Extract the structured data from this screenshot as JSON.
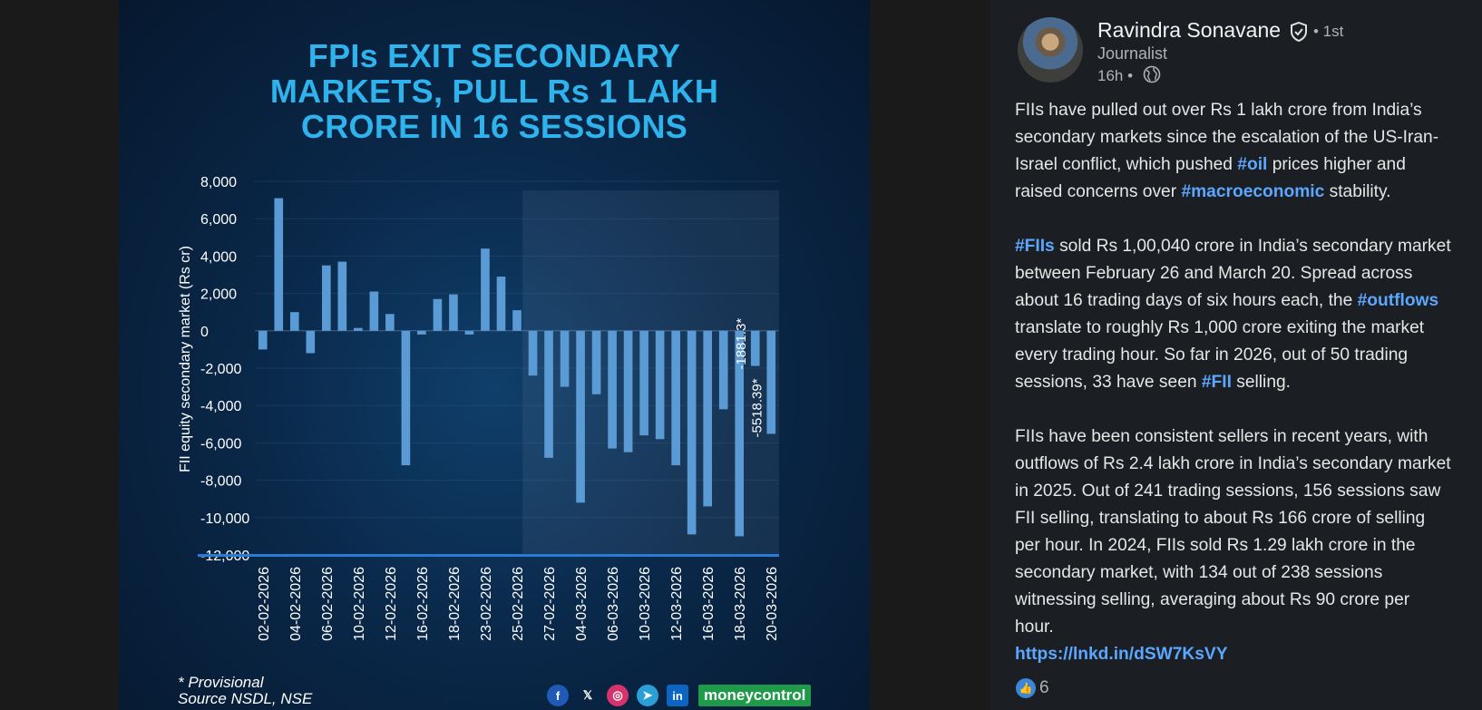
{
  "infographic": {
    "title_lines": [
      "FPIs EXIT SECONDARY",
      "MARKETS, PULL Rs 1 LAKH",
      "CRORE IN 16 SESSIONS"
    ],
    "footnote_line1": "* Provisional",
    "footnote_line2": "Source NSDL, NSE",
    "brand": "moneycontrol",
    "colors": {
      "title": "#2fb3ec",
      "bar": "#5b9bd5",
      "axis": "#2a7bd4",
      "background": "#0a2849"
    },
    "social_icons": [
      "facebook-icon",
      "x-icon",
      "instagram-icon",
      "telegram-icon",
      "linkedin-icon"
    ]
  },
  "chart_data": {
    "type": "bar",
    "ylabel": "FII equity secondary market (Rs cr)",
    "ylim": [
      -12000,
      8000
    ],
    "yticks": [
      "8,000",
      "6,000",
      "4,000",
      "2,000",
      "0",
      "-2,000",
      "-4,000",
      "-6,000",
      "-8,000",
      "-10,000",
      "-12,000"
    ],
    "xtick_labels": [
      "02-02-2026",
      "04-02-2026",
      "06-02-2026",
      "10-02-2026",
      "12-02-2026",
      "16-02-2026",
      "18-02-2026",
      "23-02-2026",
      "25-02-2026",
      "27-02-2026",
      "04-03-2026",
      "06-03-2026",
      "10-03-2026",
      "12-03-2026",
      "16-03-2026",
      "18-03-2026",
      "20-03-2026"
    ],
    "values": [
      -1000,
      7100,
      1000,
      -1200,
      3500,
      3700,
      150,
      2100,
      900,
      -7200,
      -200,
      1700,
      1950,
      -200,
      4400,
      2900,
      1100,
      -2400,
      -6800,
      -3000,
      -9200,
      -3400,
      -6300,
      -6500,
      -5600,
      -5800,
      -7200,
      -10900,
      -9400,
      -4200,
      -11000,
      -1881.3,
      -5518.39
    ],
    "highlight_start_index": 17,
    "data_labels": [
      {
        "index": 31,
        "text": "-1881.3*"
      },
      {
        "index": 32,
        "text": "-5518.39*"
      }
    ],
    "grid": true
  },
  "post": {
    "author_name": "Ravindra Sonavane",
    "degree": "• 1st",
    "headline": "Journalist",
    "time": "16h •",
    "para1": {
      "l1": "FIIs have pulled out over Rs 1 lakh crore from India’s",
      "l2": "secondary markets since the escalation of the US-Iran-",
      "l3a": "Israel conflict, which pushed ",
      "tag_oil": "#oil",
      "l3b": " prices higher and",
      "l4a": "raised concerns over ",
      "tag_macro": "#macroeconomic",
      "l4b": " stability."
    },
    "para2": {
      "tag_fiis": "#FIIs",
      "l1b": " sold Rs 1,00,040 crore in India’s secondary market",
      "l2": "between February 26 and March 20. Spread across",
      "l3a": "about 16 trading days of six hours each, the ",
      "tag_outflows": "#outflows",
      "l4": " translate to roughly Rs 1,000 crore exiting the market",
      "l5": "every trading hour. So far in 2026, out of 50 trading",
      "l6a": "sessions, 33 have seen ",
      "tag_fii": "#FII",
      "l6b": " selling."
    },
    "para3": {
      "l1": "FIIs have been consistent sellers in recent years, with",
      "l2": "outflows of Rs 2.4 lakh crore in India’s secondary market",
      "l3": "in 2025. Out of 241 trading sessions, 156 sessions saw",
      "l4": "FII selling, translating to about Rs 166 crore of selling",
      "l5": "per hour. In 2024, FIIs sold Rs 1.29 lakh crore in the",
      "l6": "secondary market, with 134 out of 238 sessions",
      "l7": "witnessing selling, averaging about Rs 90 crore per",
      "l8": "hour."
    },
    "link": "https://lnkd.in/dSW7KsVY",
    "reaction_count": "6"
  }
}
